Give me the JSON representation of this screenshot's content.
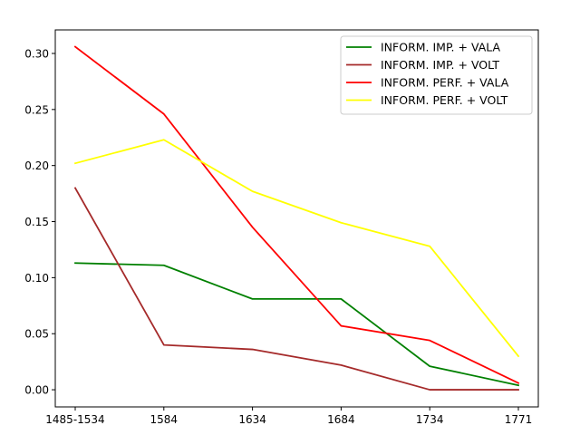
{
  "chart_data": {
    "type": "line",
    "title": "",
    "xlabel": "",
    "ylabel": "",
    "categories": [
      "1485-1534",
      "1584",
      "1634",
      "1684",
      "1734",
      "1771"
    ],
    "ylim": [
      -0.0153,
      0.321
    ],
    "yticks": [
      0.0,
      0.05,
      0.1,
      0.15,
      0.2,
      0.25,
      0.3
    ],
    "ytick_labels": [
      "0.00",
      "0.05",
      "0.10",
      "0.15",
      "0.20",
      "0.25",
      "0.30"
    ],
    "grid": false,
    "legend_position": "top-right",
    "series": [
      {
        "name": "INFORM. IMP. + VALA",
        "color": "#008000",
        "values": [
          0.113,
          0.111,
          0.081,
          0.081,
          0.021,
          0.004
        ]
      },
      {
        "name": "INFORM. IMP. + VOLT",
        "color": "#a52a2a",
        "values": [
          0.18,
          0.04,
          0.036,
          0.022,
          0.0,
          0.0
        ]
      },
      {
        "name": "INFORM. PERF. + VALA",
        "color": "#ff0000",
        "values": [
          0.306,
          0.246,
          0.145,
          0.057,
          0.044,
          0.006
        ]
      },
      {
        "name": "INFORM. PERF. + VOLT",
        "color": "#ffff00",
        "values": [
          0.202,
          0.223,
          0.177,
          0.149,
          0.128,
          0.03
        ]
      }
    ]
  }
}
